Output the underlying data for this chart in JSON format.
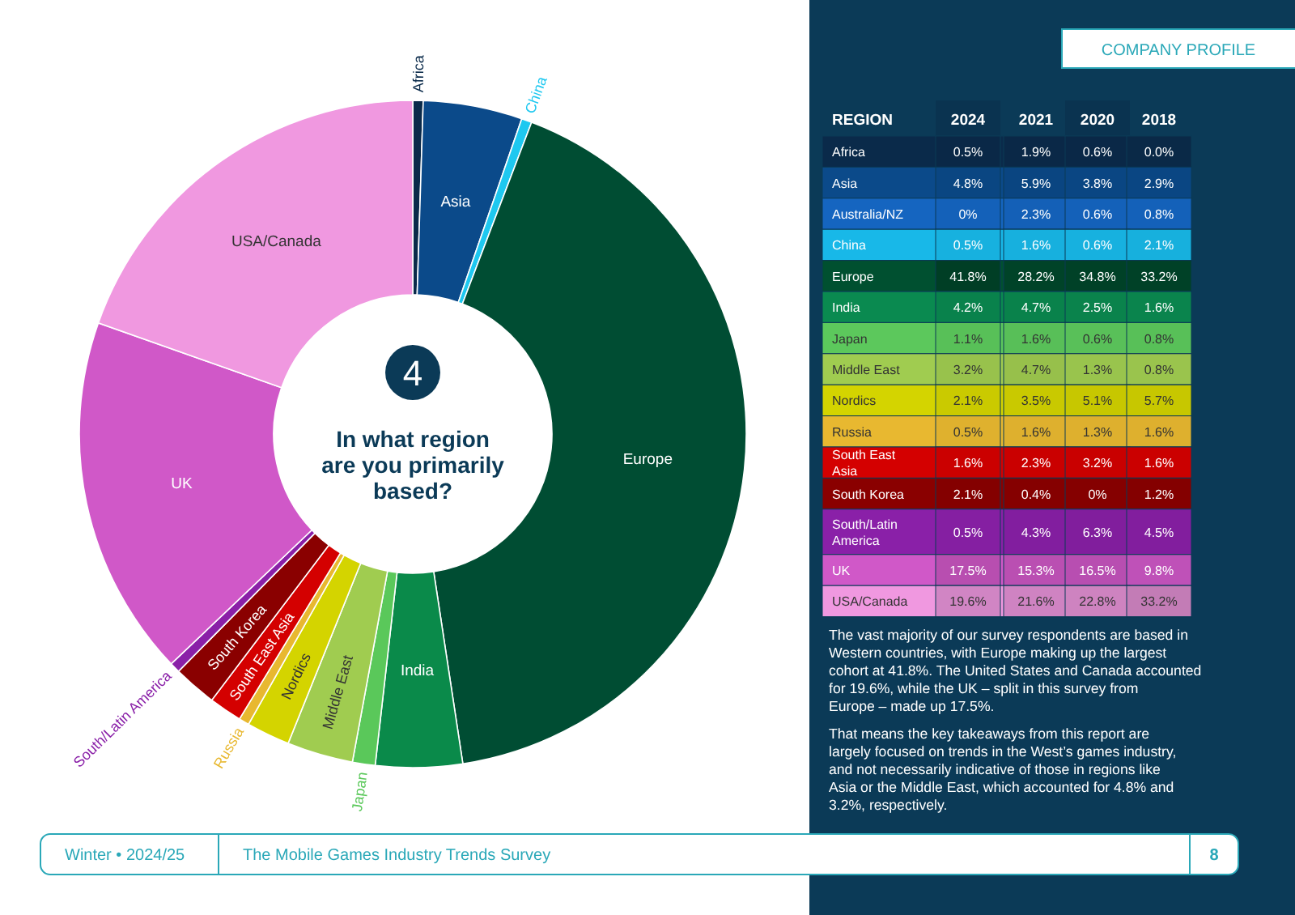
{
  "chart_data": [
    {
      "type": "donut",
      "title": "In what region are you primarily based?",
      "categories": [
        "Africa",
        "Asia",
        "China",
        "Europe",
        "India",
        "Japan",
        "Middle East",
        "Nordics",
        "Russia",
        "South East Asia",
        "South Korea",
        "South/Latin America",
        "UK",
        "USA/Canada"
      ],
      "values": [
        0.5,
        4.8,
        0.5,
        41.8,
        4.2,
        1.1,
        3.2,
        2.1,
        0.5,
        1.6,
        2.1,
        0.5,
        17.5,
        19.6
      ],
      "colors": [
        "#0a2a4a",
        "#0b4a8a",
        "#1ec8f0",
        "#004d33",
        "#0a8a4a",
        "#5ac85a",
        "#a0cc50",
        "#d4d400",
        "#e8b830",
        "#d40000",
        "#8a0000",
        "#8a20a8",
        "#d058c8",
        "#f098e0"
      ],
      "annotations": [
        "4",
        "COMPANY PROFILE",
        "Winter • 2024/25",
        "The Mobile Games Industry Trends Survey",
        "8"
      ]
    },
    {
      "type": "heatmap",
      "ylabel": "REGION",
      "categories": [
        "2024",
        "2021",
        "2020",
        "2018"
      ],
      "y_categories": [
        "Africa",
        "Asia",
        "Australia/NZ",
        "China",
        "Europe",
        "India",
        "Japan",
        "Middle East",
        "Nordics",
        "Russia",
        "South East Asia",
        "South Korea",
        "South/Latin America",
        "UK",
        "USA/Canada"
      ],
      "colors": [
        "#0a2a4a",
        "#0b4a8a",
        "#1565c0",
        "#18b8e8",
        "#005030",
        "#0a8a50",
        "#5cc85c",
        "#a0cc50",
        "#d4d400",
        "#e8b830",
        "#d40000",
        "#8a0000",
        "#8a20a8",
        "#d058c8",
        "#f098e0"
      ],
      "cells": [
        [
          0.5,
          1.9,
          0.6,
          0.0
        ],
        [
          4.8,
          5.9,
          3.8,
          2.9
        ],
        [
          0,
          2.3,
          0.6,
          0.8
        ],
        [
          0.5,
          1.6,
          0.6,
          2.1
        ],
        [
          41.8,
          28.2,
          34.8,
          33.2
        ],
        [
          4.2,
          4.7,
          2.5,
          1.6
        ],
        [
          1.1,
          1.6,
          0.6,
          0.8
        ],
        [
          3.2,
          4.7,
          1.3,
          0.8
        ],
        [
          2.1,
          3.5,
          5.1,
          5.7
        ],
        [
          0.5,
          1.6,
          1.3,
          1.6
        ],
        [
          1.6,
          2.3,
          3.2,
          1.6
        ],
        [
          2.1,
          0.4,
          0,
          1.2
        ],
        [
          0.5,
          4.3,
          6.3,
          4.5
        ],
        [
          17.5,
          15.3,
          16.5,
          9.8
        ],
        [
          19.6,
          21.6,
          22.8,
          33.2
        ]
      ],
      "cell_labels": [
        [
          "0.5%",
          "1.9%",
          "0.6%",
          "0.0%"
        ],
        [
          "4.8%",
          "5.9%",
          "3.8%",
          "2.9%"
        ],
        [
          "0%",
          "2.3%",
          "0.6%",
          "0.8%"
        ],
        [
          "0.5%",
          "1.6%",
          "0.6%",
          "2.1%"
        ],
        [
          "41.8%",
          "28.2%",
          "34.8%",
          "33.2%"
        ],
        [
          "4.2%",
          "4.7%",
          "2.5%",
          "1.6%"
        ],
        [
          "1.1%",
          "1.6%",
          "0.6%",
          "0.8%"
        ],
        [
          "3.2%",
          "4.7%",
          "1.3%",
          "0.8%"
        ],
        [
          "2.1%",
          "3.5%",
          "5.1%",
          "5.7%"
        ],
        [
          "0.5%",
          "1.6%",
          "1.3%",
          "1.6%"
        ],
        [
          "1.6%",
          "2.3%",
          "3.2%",
          "1.6%"
        ],
        [
          "2.1%",
          "0.4%",
          "0%",
          "1.2%"
        ],
        [
          "0.5%",
          "4.3%",
          "6.3%",
          "4.5%"
        ],
        [
          "17.5%",
          "15.3%",
          "16.5%",
          "9.8%"
        ],
        [
          "19.6%",
          "21.6%",
          "22.8%",
          "33.2%"
        ]
      ],
      "annotations": [
        "The vast majority of our survey respondents are based in Western countries, with Europe making up the largest cohort at 41.8%. The United States and Canada accounted for 19.6%, while the UK – split in this survey from Europe – made up 17.5%.",
        "That means the key takeaways from this report are largely focused on trends in the West’s games industry, and not necessarily indicative of those in regions like Asia or the Middle East, which accounted for 4.8% and 3.2%, respectively."
      ]
    }
  ]
}
